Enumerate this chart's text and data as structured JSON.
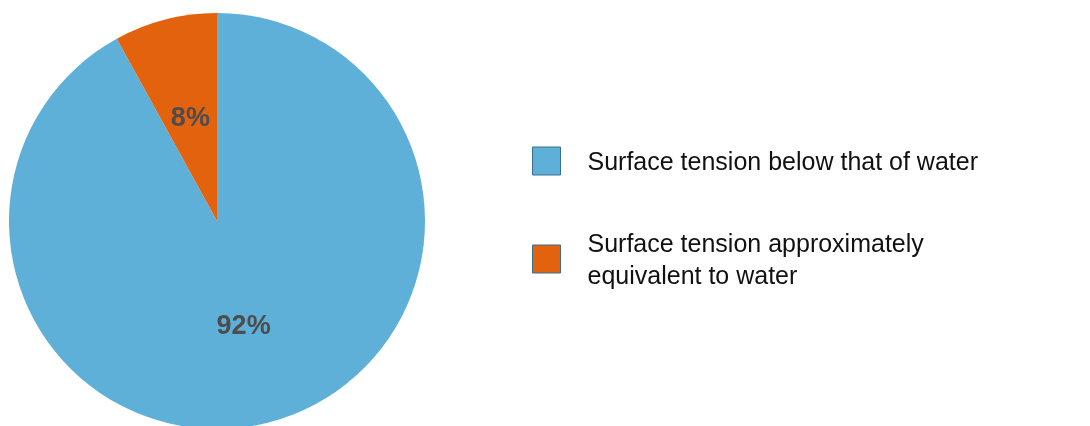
{
  "chart_data": {
    "type": "pie",
    "categories": [
      "Surface tension below that of water",
      "Surface tension approximately equivalent to water"
    ],
    "values": [
      92,
      8
    ],
    "colors": [
      "#5eb0d9",
      "#e2620e"
    ],
    "value_labels": [
      "92%",
      "8%"
    ],
    "legend": "right"
  }
}
